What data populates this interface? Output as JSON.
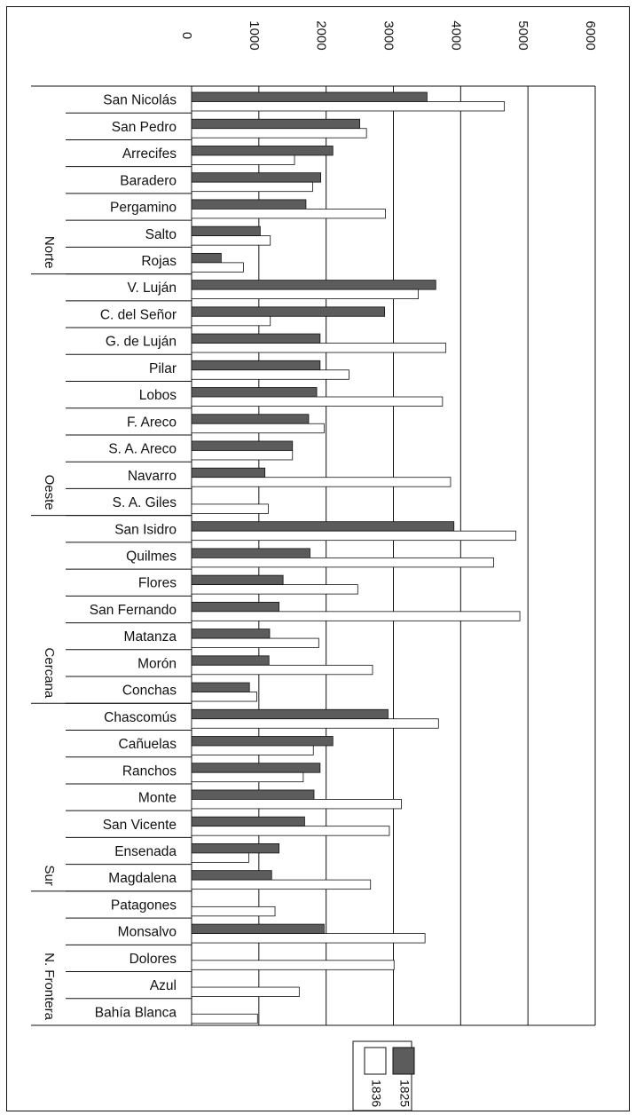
{
  "chart_data": {
    "type": "bar",
    "orientation": "horizontal",
    "title": "",
    "xlabel": "",
    "ylabel": "",
    "xlim": [
      0,
      6000
    ],
    "x_ticks": [
      0,
      1000,
      2000,
      3000,
      4000,
      5000,
      6000
    ],
    "x_tick_labels": [
      "0",
      "1000",
      "2000",
      "3000",
      "4000",
      "5000",
      "6000"
    ],
    "grid": true,
    "legend_position": "bottom",
    "colors": {
      "1825": "#5c5c5c",
      "1836": "#ffffff",
      "outline": "#111111"
    },
    "categories": [
      "San Nicolás",
      "San Pedro",
      "Arrecifes",
      "Baradero",
      "Pergamino",
      "Salto",
      "Rojas",
      "V. Luján",
      "C. del Señor",
      "G. de Luján",
      "Pilar",
      "Lobos",
      "F. Areco",
      "S. A. Areco",
      "Navarro",
      "S. A. Giles",
      "San Isidro",
      "Quilmes",
      "Flores",
      "San Fernando",
      "Matanza",
      "Morón",
      "Conchas",
      "Chascomús",
      "Cañuelas",
      "Ranchos",
      "Monte",
      "San Vicente",
      "Ensenada",
      "Magdalena",
      "Patagones",
      "Monsalvo",
      "Dolores",
      "Azul",
      "Bahía Blanca"
    ],
    "groups": [
      {
        "name": "Norte",
        "start": 0,
        "end": 6
      },
      {
        "name": "Oeste",
        "start": 7,
        "end": 15
      },
      {
        "name": "Cercana",
        "start": 16,
        "end": 22
      },
      {
        "name": "Sur",
        "start": 23,
        "end": 29
      },
      {
        "name": "N. Frontera",
        "start": 30,
        "end": 34
      }
    ],
    "series": [
      {
        "name": "1825",
        "values": [
          3500,
          2500,
          2100,
          1920,
          1700,
          1020,
          440,
          3630,
          2870,
          1910,
          1910,
          1860,
          1740,
          1500,
          1090,
          null,
          3900,
          1760,
          1360,
          1300,
          1160,
          1150,
          860,
          2920,
          2100,
          1910,
          1820,
          1680,
          1300,
          1190,
          null,
          1970,
          null,
          null,
          null
        ]
      },
      {
        "name": "1836",
        "values": [
          4650,
          2600,
          1530,
          1800,
          2880,
          1170,
          770,
          3370,
          1170,
          3780,
          2340,
          3730,
          1970,
          1500,
          3850,
          1140,
          4820,
          4490,
          2470,
          4880,
          1890,
          2690,
          970,
          3670,
          1810,
          1660,
          3120,
          2940,
          850,
          2660,
          1240,
          3470,
          3010,
          1600,
          980
        ]
      }
    ],
    "legend": [
      {
        "label": "1825",
        "color": "#5c5c5c"
      },
      {
        "label": "1836",
        "color": "#ffffff"
      }
    ]
  }
}
